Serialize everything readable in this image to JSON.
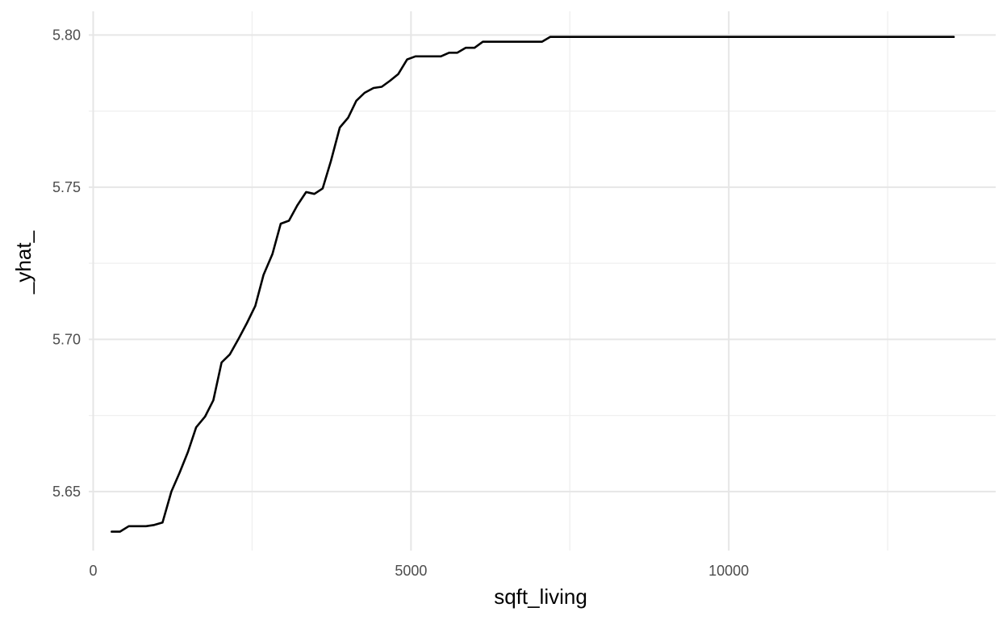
{
  "colors": {
    "series": "#000000",
    "grid_major": "#e6e6e6",
    "grid_minor": "#efefef",
    "tick_text": "#4d4d4d",
    "axis_title": "#000000"
  },
  "chart_data": {
    "type": "line",
    "title": "",
    "xlabel": "sqft_living",
    "ylabel": "_yhat_",
    "xlim": [
      -70,
      14200
    ],
    "ylim": [
      5.6306,
      5.8078
    ],
    "x_ticks": [
      0,
      5000,
      10000
    ],
    "x_tick_labels": [
      "0",
      "5000",
      "10000"
    ],
    "x_minor_ticks": [
      2500,
      7500,
      12500
    ],
    "y_ticks": [
      5.65,
      5.7,
      5.75,
      5.8
    ],
    "y_tick_labels": [
      "5.65",
      "5.70",
      "5.75",
      "5.80"
    ],
    "y_minor_ticks": [
      5.675,
      5.725,
      5.775
    ],
    "grid": true,
    "legend": "none",
    "series": [
      {
        "color": "#000000",
        "x": [
          290,
          420,
          560,
          700,
          830,
          960,
          1090,
          1230,
          1360,
          1490,
          1620,
          1760,
          1890,
          2020,
          2150,
          2290,
          2420,
          2550,
          2680,
          2820,
          2950,
          3080,
          3210,
          3350,
          3480,
          3610,
          3740,
          3880,
          4010,
          4140,
          4270,
          4410,
          4540,
          4670,
          4800,
          4940,
          5070,
          5200,
          5330,
          5470,
          5600,
          5730,
          5860,
          6000,
          6130,
          6260,
          6390,
          6530,
          6660,
          6790,
          6920,
          7060,
          7190,
          7320,
          8000,
          9000,
          10000,
          11000,
          12000,
          13000,
          13540
        ],
        "y": [
          5.6368,
          5.6368,
          5.6386,
          5.6386,
          5.6386,
          5.639,
          5.6398,
          5.65,
          5.6562,
          5.663,
          5.6711,
          5.6746,
          5.68,
          5.6924,
          5.6951,
          5.7003,
          5.7054,
          5.711,
          5.7212,
          5.728,
          5.738,
          5.739,
          5.744,
          5.7484,
          5.7478,
          5.7496,
          5.7586,
          5.7696,
          5.7728,
          5.7784,
          5.781,
          5.7826,
          5.783,
          5.785,
          5.7872,
          5.792,
          5.793,
          5.793,
          5.793,
          5.793,
          5.7942,
          5.7942,
          5.7958,
          5.7958,
          5.7978,
          5.7978,
          5.7978,
          5.7978,
          5.7978,
          5.7978,
          5.7978,
          5.7978,
          5.7994,
          5.7994,
          5.7994,
          5.7994,
          5.7994,
          5.7994,
          5.7994,
          5.7994,
          5.7994
        ]
      }
    ]
  }
}
